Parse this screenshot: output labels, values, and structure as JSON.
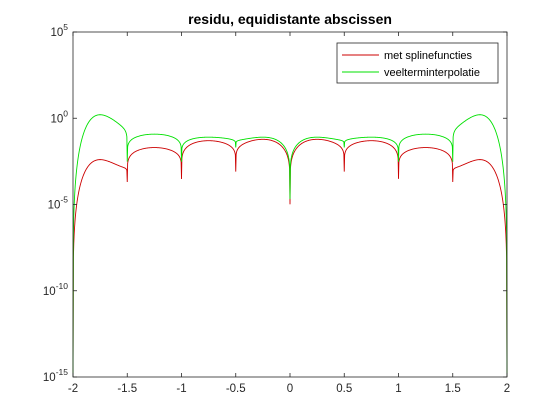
{
  "chart_data": {
    "type": "line",
    "title": "residu, equidistante abscissen",
    "xlabel": "",
    "ylabel": "",
    "xlim": [
      -2,
      2
    ],
    "ylim": [
      1e-15,
      100000.0
    ],
    "yscale": "log",
    "grid": false,
    "legend_position": "top-right",
    "x_ticks": [
      {
        "value": -2,
        "label": "-2"
      },
      {
        "value": -1.5,
        "label": "-1.5"
      },
      {
        "value": -1,
        "label": "-1"
      },
      {
        "value": -0.5,
        "label": "-0.5"
      },
      {
        "value": 0,
        "label": "0"
      },
      {
        "value": 0.5,
        "label": "0.5"
      },
      {
        "value": 1,
        "label": "1"
      },
      {
        "value": 1.5,
        "label": "1.5"
      },
      {
        "value": 2,
        "label": "2"
      }
    ],
    "y_ticks": [
      {
        "value": 1e-15,
        "base": "10",
        "exp": "-15"
      },
      {
        "value": 1e-10,
        "base": "10",
        "exp": "-10"
      },
      {
        "value": 1e-05,
        "base": "10",
        "exp": "-5"
      },
      {
        "value": 1,
        "base": "10",
        "exp": "0"
      },
      {
        "value": 100000.0,
        "base": "10",
        "exp": "5"
      }
    ],
    "nodes": [
      -2,
      -1.5,
      -1,
      -0.5,
      0,
      0.5,
      1,
      1.5,
      2
    ],
    "series": [
      {
        "name": "met splinefuncties",
        "color": "#cc0000",
        "peaks": [
          0.004,
          0.02,
          0.05,
          0.06,
          0.06,
          0.05,
          0.02,
          0.004
        ],
        "node_values": [
          1e-15,
          0.0002,
          0.0003,
          0.0008,
          1e-05,
          0.0008,
          0.0003,
          0.0002,
          1e-15
        ]
      },
      {
        "name": "veelterminterpolatie",
        "color": "#00e000",
        "peaks": [
          1.6,
          0.12,
          0.08,
          0.08,
          0.08,
          0.08,
          0.12,
          1.6
        ],
        "node_values": [
          1e-15,
          0.003,
          0.003,
          0.02,
          2e-05,
          0.02,
          0.003,
          0.003,
          1e-15
        ]
      }
    ]
  }
}
